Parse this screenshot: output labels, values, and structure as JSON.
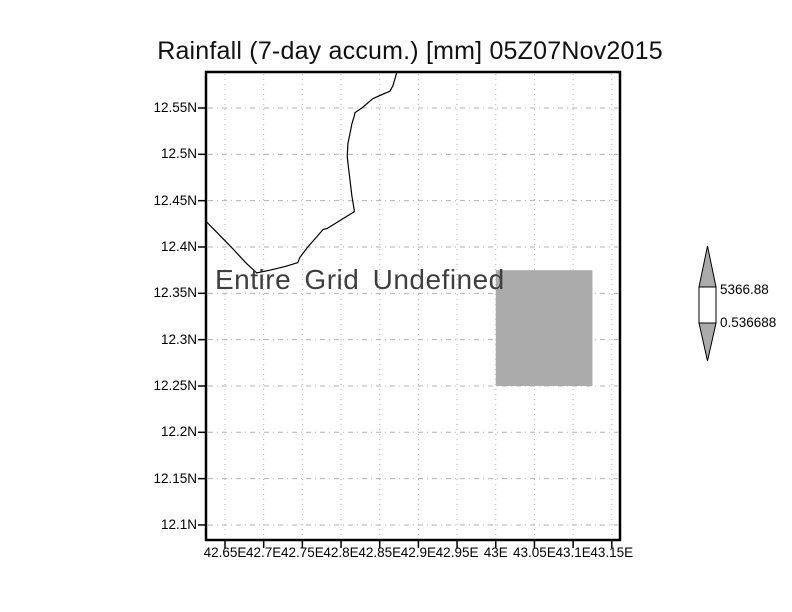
{
  "title": "Rainfall (7-day accum.) [mm] 05Z07Nov2015",
  "overlay_message": "Entire Grid Undefined",
  "colorbar": {
    "max_label": "5366.88",
    "min_label": "0.536688",
    "max_value": 5366.88,
    "min_value": 0.536688,
    "triangle_color": "#ababab",
    "box_color": "#ffffff",
    "outline_color": "#000000"
  },
  "chart_data": {
    "type": "heatmap",
    "subtype": "lat-lon map with shaded grid cell and coastline",
    "title": "Rainfall (7-day accum.) [mm] 05Z07Nov2015",
    "grid": true,
    "grid_color": "#b0b0b0",
    "frame_color": "#000000",
    "lon_axis": {
      "ticks": [
        42.65,
        42.7,
        42.75,
        42.8,
        42.85,
        42.9,
        42.95,
        43.0,
        43.05,
        43.1,
        43.15
      ],
      "labels": [
        "42.65E",
        "42.7E",
        "42.75E",
        "42.8E",
        "42.85E",
        "42.9E",
        "42.95E",
        "43E",
        "43.05E",
        "43.1E",
        "43.15E"
      ],
      "range": [
        42.625,
        43.161
      ]
    },
    "lat_axis": {
      "ticks": [
        12.55,
        12.5,
        12.45,
        12.4,
        12.35,
        12.3,
        12.25,
        12.2,
        12.15,
        12.1
      ],
      "labels": [
        "12.55N",
        "12.5N",
        "12.45N",
        "12.4N",
        "12.35N",
        "12.3N",
        "12.25N",
        "12.2N",
        "12.15N",
        "12.1N"
      ],
      "range": [
        12.084,
        12.589
      ]
    },
    "undefined_region_label": "Entire Grid Undefined",
    "shaded_cell": {
      "lon": [
        43.0,
        43.125
      ],
      "lat": [
        12.25,
        12.375
      ],
      "color": "#ababab"
    },
    "colorbar": {
      "min": 0.536688,
      "max": 5366.88,
      "position": "right"
    },
    "coastline_lonlat": [
      [
        42.872,
        12.588
      ],
      [
        42.867,
        12.574
      ],
      [
        42.863,
        12.568
      ],
      [
        42.857,
        12.566
      ],
      [
        42.841,
        12.56
      ],
      [
        42.827,
        12.55
      ],
      [
        42.818,
        12.545
      ],
      [
        42.817,
        12.541
      ],
      [
        42.814,
        12.533
      ],
      [
        42.809,
        12.512
      ],
      [
        42.808,
        12.498
      ],
      [
        42.809,
        12.49
      ],
      [
        42.814,
        12.455
      ],
      [
        42.817,
        12.44
      ],
      [
        42.817,
        12.438
      ],
      [
        42.782,
        12.42
      ],
      [
        42.777,
        12.419
      ],
      [
        42.757,
        12.4
      ],
      [
        42.747,
        12.389
      ],
      [
        42.744,
        12.383
      ],
      [
        42.728,
        12.379
      ],
      [
        42.708,
        12.375
      ],
      [
        42.691,
        12.372
      ],
      [
        42.678,
        12.382
      ],
      [
        42.659,
        12.399
      ],
      [
        42.638,
        12.417
      ],
      [
        42.625,
        12.428
      ]
    ]
  }
}
